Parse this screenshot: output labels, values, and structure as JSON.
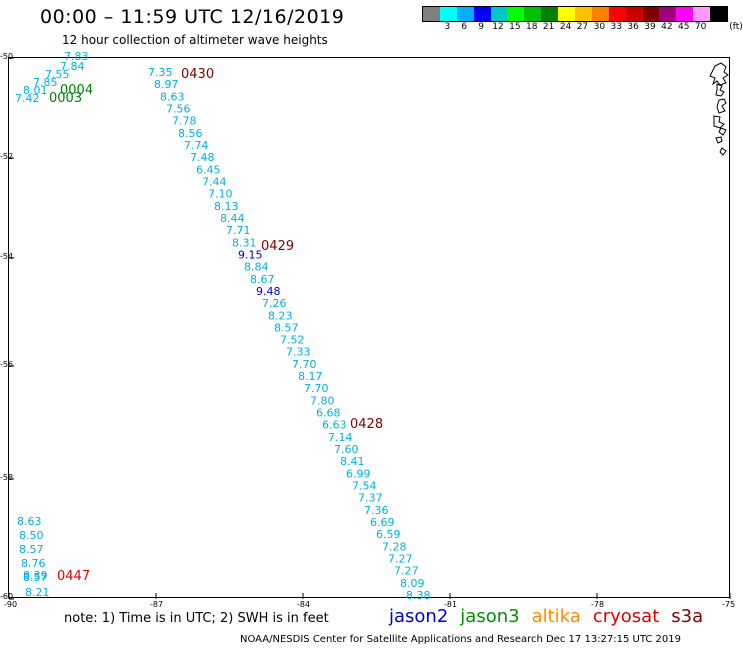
{
  "header": {
    "title": "00:00 – 11:59 UTC 12/16/2019",
    "subtitle": "12 hour collection of altimeter wave heights"
  },
  "legend": {
    "unit": "(ft)",
    "colors": [
      "#808080",
      "#00ffff",
      "#00b0ff",
      "#0000ff",
      "#00c8c8",
      "#00ff00",
      "#00c000",
      "#008000",
      "#ffff00",
      "#ffc000",
      "#ff8000",
      "#ff0000",
      "#c80000",
      "#800000",
      "#a00080",
      "#ff00ff",
      "#ff99ff",
      "#000000"
    ],
    "labels": [
      "3",
      "6",
      "9",
      "12",
      "15",
      "18",
      "21",
      "24",
      "27",
      "30",
      "33",
      "36",
      "39",
      "42",
      "45",
      "70"
    ]
  },
  "map": {
    "lon_ticks": [
      "-90",
      "-87",
      "-84",
      "-81",
      "-78",
      "-75"
    ],
    "lat_ticks": [
      "-50",
      "-52",
      "-54",
      "-56",
      "-58",
      "-60"
    ],
    "pass_labels": [
      {
        "text": "0430",
        "color": "#800000"
      },
      {
        "text": "0429",
        "color": "#800000"
      },
      {
        "text": "0428",
        "color": "#800000"
      },
      {
        "text": "0447",
        "color": "#e00000"
      },
      {
        "text": "0004",
        "color": "#008000"
      },
      {
        "text": "0003",
        "color": "#008000"
      }
    ],
    "track_main": [
      "7.35",
      "8.97",
      "8.63",
      "7.56",
      "7.78",
      "8.56",
      "7.74",
      "7.48",
      "6.45",
      "7.44",
      "7.10",
      "8.13",
      "8.44",
      "7.71",
      "8.31",
      "9.15",
      "8.84",
      "8.67",
      "9.48",
      "7.26",
      "8.23",
      "8.57",
      "7.52",
      "7.33",
      "7.70",
      "8.17",
      "7.70",
      "7.80",
      "6.68",
      "6.63",
      "7.14",
      "7.60",
      "8.41",
      "6.99",
      "7.54",
      "7.37",
      "7.36",
      "6.69",
      "6.59",
      "7.28",
      "7.27",
      "7.27",
      "8.09",
      "8.38"
    ],
    "track_main_dark": [
      15,
      18
    ],
    "track_topleft": [
      "7.83",
      "7.84",
      "7.55",
      "7.85",
      "8.01",
      "7.42"
    ],
    "track_bottomleft": [
      "8.63",
      "8.50",
      "8.57",
      "8.76",
      "8.39",
      "8.57",
      "8.21"
    ]
  },
  "footer": {
    "note": "note:  1) Time is in UTC;  2) SWH is in feet",
    "satellites": [
      {
        "name": "jason2",
        "color": "#0000d0"
      },
      {
        "name": "jason3",
        "color": "#009000"
      },
      {
        "name": "altika",
        "color": "#ff8c00"
      },
      {
        "name": "cryosat",
        "color": "#e00000"
      },
      {
        "name": "s3a",
        "color": "#800000"
      }
    ],
    "credit": "NOAA/NESDIS Center for Satellite Applications and Research     Dec 17 13:27:15 UTC 2019"
  }
}
